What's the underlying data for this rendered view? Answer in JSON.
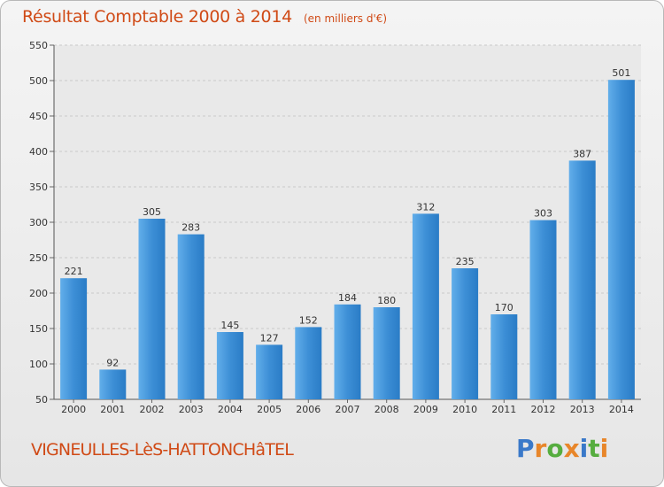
{
  "chart_data": {
    "type": "bar",
    "title": "Résultat Comptable 2000 à 2014",
    "subtitle": "(en milliers d'€)",
    "categories": [
      "2000",
      "2001",
      "2002",
      "2003",
      "2004",
      "2005",
      "2006",
      "2007",
      "2008",
      "2009",
      "2010",
      "2011",
      "2012",
      "2013",
      "2014"
    ],
    "values": [
      221,
      92,
      305,
      283,
      145,
      127,
      152,
      184,
      180,
      312,
      235,
      170,
      303,
      387,
      501
    ],
    "ylim": [
      50,
      550
    ],
    "yticks": [
      50,
      100,
      150,
      200,
      250,
      300,
      350,
      400,
      450,
      500,
      550
    ],
    "xlabel": "",
    "ylabel": "",
    "grid": true,
    "bar_color": "#3d8fd6"
  },
  "footer": {
    "commune": "VIGNEULLES-LèS-HATTONCHâTEL",
    "logo_letters": [
      "P",
      "r",
      "o",
      "x",
      "i",
      "t",
      "i"
    ],
    "logo_colors": [
      "#3a79c9",
      "#e8862a",
      "#56ad3f",
      "#e8862a",
      "#3a79c9",
      "#56ad3f",
      "#e8862a"
    ]
  }
}
